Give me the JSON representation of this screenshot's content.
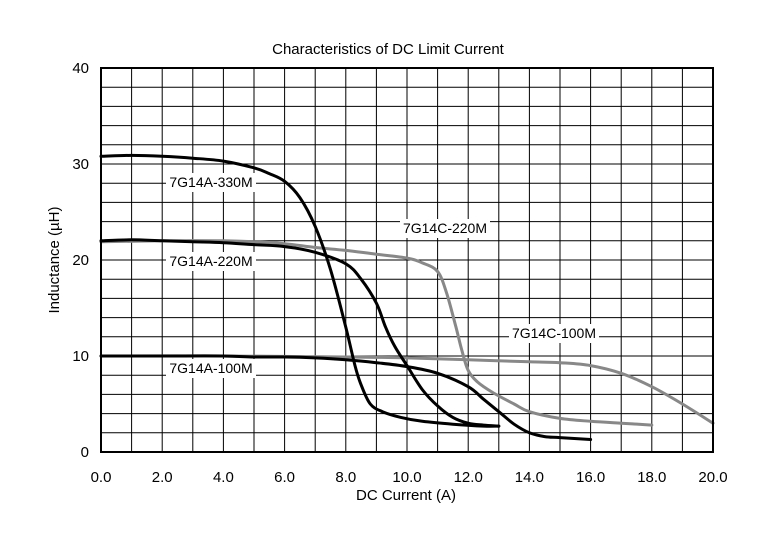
{
  "chart_data": {
    "type": "line",
    "title": "Characteristics of DC Limit Current",
    "xlabel": "DC Current (A)",
    "ylabel": "Inductance (µH)",
    "xlim": [
      0,
      20
    ],
    "ylim": [
      0,
      40
    ],
    "x_ticks": [
      "0.0",
      "2.0",
      "4.0",
      "6.0",
      "8.0",
      "10.0",
      "12.0",
      "14.0",
      "16.0",
      "18.0",
      "20.0"
    ],
    "y_ticks": [
      "0",
      "10",
      "20",
      "30",
      "40"
    ],
    "grid": true,
    "series": [
      {
        "name": "7G14A-330M",
        "color": "#000000",
        "points": [
          [
            0,
            30.8
          ],
          [
            1,
            30.9
          ],
          [
            2,
            30.8
          ],
          [
            3,
            30.6
          ],
          [
            4,
            30.3
          ],
          [
            5,
            29.6
          ],
          [
            5.5,
            29.0
          ],
          [
            6,
            28.2
          ],
          [
            6.5,
            26.5
          ],
          [
            7,
            23.5
          ],
          [
            7.5,
            19
          ],
          [
            8,
            13
          ],
          [
            8.3,
            9
          ],
          [
            8.5,
            7
          ],
          [
            8.8,
            5
          ],
          [
            9.2,
            4.2
          ],
          [
            9.8,
            3.6
          ],
          [
            10.5,
            3.2
          ],
          [
            11.5,
            2.9
          ],
          [
            12.5,
            2.7
          ],
          [
            13,
            2.7
          ]
        ]
      },
      {
        "name": "7G14A-220M",
        "color": "#000000",
        "points": [
          [
            0,
            22
          ],
          [
            1,
            22.1
          ],
          [
            2,
            22
          ],
          [
            3,
            21.9
          ],
          [
            4,
            21.8
          ],
          [
            5,
            21.6
          ],
          [
            6,
            21.4
          ],
          [
            7,
            20.8
          ],
          [
            8,
            19.6
          ],
          [
            8.5,
            18
          ],
          [
            9,
            15.5
          ],
          [
            9.3,
            13
          ],
          [
            9.6,
            11
          ],
          [
            10,
            9
          ],
          [
            10.5,
            6.5
          ],
          [
            11,
            4.8
          ],
          [
            11.5,
            3.6
          ],
          [
            12,
            3
          ],
          [
            12.5,
            2.8
          ],
          [
            13,
            2.7
          ]
        ]
      },
      {
        "name": "7G14A-100M",
        "color": "#000000",
        "points": [
          [
            0,
            10
          ],
          [
            2,
            10
          ],
          [
            4,
            10
          ],
          [
            5,
            9.9
          ],
          [
            6,
            9.9
          ],
          [
            7,
            9.8
          ],
          [
            8,
            9.6
          ],
          [
            9,
            9.3
          ],
          [
            10,
            8.9
          ],
          [
            11,
            8.2
          ],
          [
            12,
            6.8
          ],
          [
            12.5,
            5.5
          ],
          [
            13,
            4.2
          ],
          [
            13.5,
            2.9
          ],
          [
            14,
            2
          ],
          [
            14.5,
            1.6
          ],
          [
            15,
            1.5
          ],
          [
            16,
            1.3
          ]
        ]
      },
      {
        "name": "7G14C-220M",
        "color": "#888888",
        "points": [
          [
            0,
            21.9
          ],
          [
            2,
            22
          ],
          [
            4,
            22
          ],
          [
            5,
            21.9
          ],
          [
            6,
            21.7
          ],
          [
            7,
            21.3
          ],
          [
            8,
            21
          ],
          [
            9,
            20.6
          ],
          [
            10,
            20.2
          ],
          [
            10.5,
            19.7
          ],
          [
            11,
            18.8
          ],
          [
            11.3,
            16.5
          ],
          [
            11.6,
            13
          ],
          [
            11.8,
            10.5
          ],
          [
            12,
            8.5
          ],
          [
            12.3,
            7.3
          ],
          [
            12.8,
            6.2
          ],
          [
            13.5,
            5
          ],
          [
            14,
            4.2
          ],
          [
            15,
            3.5
          ],
          [
            16,
            3.2
          ],
          [
            17,
            3
          ],
          [
            18,
            2.8
          ]
        ]
      },
      {
        "name": "7G14C-100M",
        "color": "#888888",
        "points": [
          [
            0,
            10
          ],
          [
            4,
            10
          ],
          [
            8,
            9.9
          ],
          [
            10,
            9.8
          ],
          [
            12,
            9.6
          ],
          [
            14,
            9.4
          ],
          [
            15,
            9.3
          ],
          [
            16,
            9.0
          ],
          [
            17,
            8.2
          ],
          [
            18,
            6.8
          ],
          [
            19,
            5.0
          ],
          [
            20,
            3.0
          ]
        ]
      }
    ],
    "annotations": [
      {
        "text": "7G14A-330M",
        "series": 0
      },
      {
        "text": "7G14A-220M",
        "series": 1
      },
      {
        "text": "7G14A-100M",
        "series": 2
      },
      {
        "text": "7G14C-220M",
        "series": 3
      },
      {
        "text": "7G14C-100M",
        "series": 4
      }
    ]
  }
}
